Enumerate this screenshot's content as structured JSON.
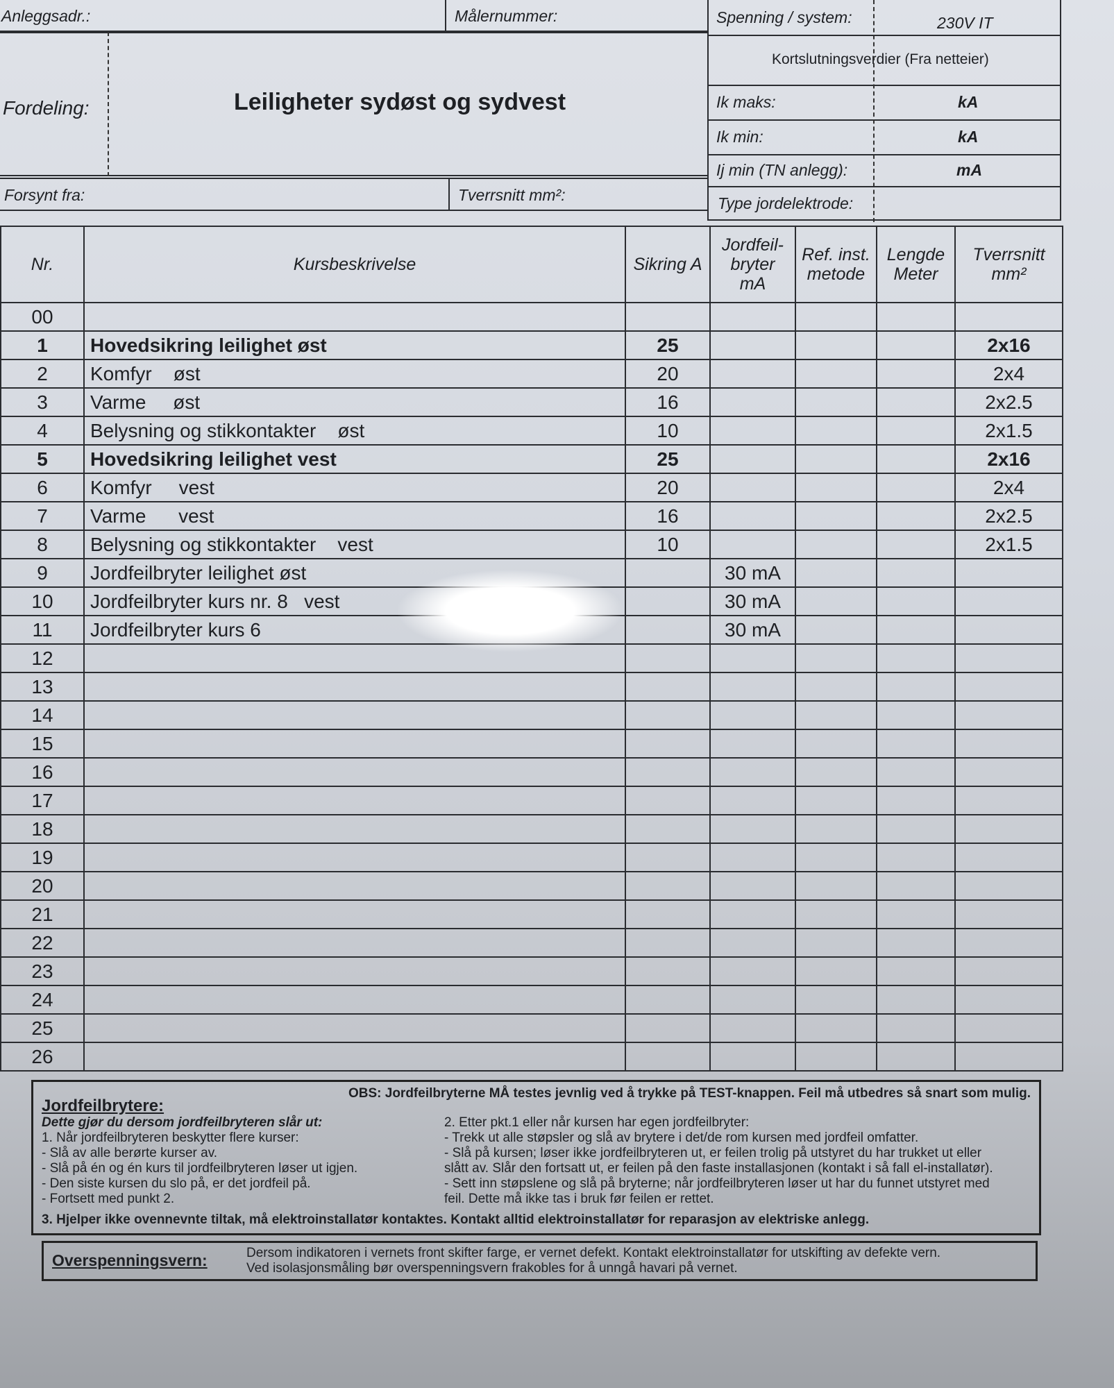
{
  "header": {
    "anleggsadr_label": "Anleggsadr.:",
    "malernummer_label": "Målernummer:",
    "spenning_label": "Spenning / system:",
    "spenning_value": "230V IT",
    "fordeling_label": "Fordeling:",
    "fordeling_value": "Leiligheter sydøst og sydvest",
    "kortslutning_label": "Kortslutningsverdier (Fra netteier)",
    "ik_maks_label": "Ik maks:",
    "ik_maks_unit": "kA",
    "ik_min_label": "Ik min:",
    "ik_min_unit": "kA",
    "ij_min_label": "Ij min (TN anlegg):",
    "ij_min_unit": "mA",
    "forsynt_label": "Forsynt fra:",
    "tverrsnitt_label": "Tverrsnitt mm²:",
    "jordelektrode_label": "Type jordelektrode:"
  },
  "table": {
    "columns": [
      "Nr.",
      "Kursbeskrivelse",
      "Sikring A",
      "Jordfeil-bryter mA",
      "Ref. inst. metode",
      "Lengde Meter",
      "Tverrsnitt mm²"
    ],
    "rows": [
      {
        "nr": "00",
        "desc": "",
        "sikring": "",
        "jf": "",
        "tv": ""
      },
      {
        "nr": "1",
        "desc": "Hovedsikring leilighet øst",
        "sikring": "25",
        "jf": "",
        "tv": "2x16",
        "bold": true
      },
      {
        "nr": "2",
        "desc": "Komfyr    øst",
        "sikring": "20",
        "jf": "",
        "tv": "2x4"
      },
      {
        "nr": "3",
        "desc": "Varme     øst",
        "sikring": "16",
        "jf": "",
        "tv": "2x2.5"
      },
      {
        "nr": "4",
        "desc": "Belysning og stikkontakter    øst",
        "sikring": "10",
        "jf": "",
        "tv": "2x1.5"
      },
      {
        "nr": "5",
        "desc": "Hovedsikring leilighet vest",
        "sikring": "25",
        "jf": "",
        "tv": "2x16",
        "bold": true
      },
      {
        "nr": "6",
        "desc": "Komfyr     vest",
        "sikring": "20",
        "jf": "",
        "tv": "2x4"
      },
      {
        "nr": "7",
        "desc": "Varme      vest",
        "sikring": "16",
        "jf": "",
        "tv": "2x2.5"
      },
      {
        "nr": "8",
        "desc": "Belysning og stikkontakter    vest",
        "sikring": "10",
        "jf": "",
        "tv": "2x1.5"
      },
      {
        "nr": "9",
        "desc": "Jordfeilbryter leilighet øst",
        "sikring": "",
        "jf": "30 mA",
        "tv": ""
      },
      {
        "nr": "10",
        "desc": "Jordfeilbryter kurs nr. 8   vest",
        "sikring": "",
        "jf": "30 mA",
        "tv": ""
      },
      {
        "nr": "11",
        "desc": "Jordfeilbryter kurs 6",
        "sikring": "",
        "jf": "30 mA",
        "tv": ""
      },
      {
        "nr": "12"
      },
      {
        "nr": "13"
      },
      {
        "nr": "14"
      },
      {
        "nr": "15"
      },
      {
        "nr": "16"
      },
      {
        "nr": "17"
      },
      {
        "nr": "18"
      },
      {
        "nr": "19"
      },
      {
        "nr": "20"
      },
      {
        "nr": "21"
      },
      {
        "nr": "22"
      },
      {
        "nr": "23"
      },
      {
        "nr": "24"
      },
      {
        "nr": "25"
      },
      {
        "nr": "26"
      }
    ]
  },
  "info": {
    "title": "Jordfeilbrytere:",
    "obs": "OBS: Jordfeilbryterne MÅ testes jevnlig ved å trykke på TEST-knappen. Feil må utbedres så snart som mulig.",
    "subtitle": "Dette gjør du dersom jordfeilbryteren slår ut:",
    "left": [
      "1.      Når jordfeilbryteren beskytter flere kurser:",
      "- Slå av alle berørte kurser av.",
      "- Slå på én og én kurs til jordfeilbryteren løser ut igjen.",
      "- Den siste kursen du slo på, er det jordfeil på.",
      "- Fortsett med punkt 2."
    ],
    "right": [
      "2.      Etter pkt.1 eller når kursen har egen jordfeilbryter:",
      "- Trekk ut alle støpsler og slå av brytere i det/de rom kursen med jordfeil omfatter.",
      "- Slå på kursen; løser ikke jordfeilbryteren ut, er feilen trolig på utstyret du har trukket ut eller",
      "slått av. Slår den fortsatt ut, er feilen på den faste installasjonen (kontakt i så fall el-installatør).",
      "- Sett inn støpslene og slå på bryterne; når jordfeilbryteren løser ut har du funnet utstyret med",
      "feil. Dette må ikke tas i bruk før feilen er rettet."
    ],
    "point3": "3.      Hjelper ikke ovennevnte tiltak, må elektroinstallatør kontaktes. Kontakt alltid elektroinstallatør for reparasjon av elektriske anlegg."
  },
  "overspenning": {
    "title": "Overspenningsvern:",
    "line1": "Dersom indikatoren i vernets front skifter farge, er vernet defekt. Kontakt elektroinstallatør for utskifting av defekte vern.",
    "line2": "Ved isolasjonsmåling bør overspenningsvern frakobles for å unngå havari på vernet."
  }
}
